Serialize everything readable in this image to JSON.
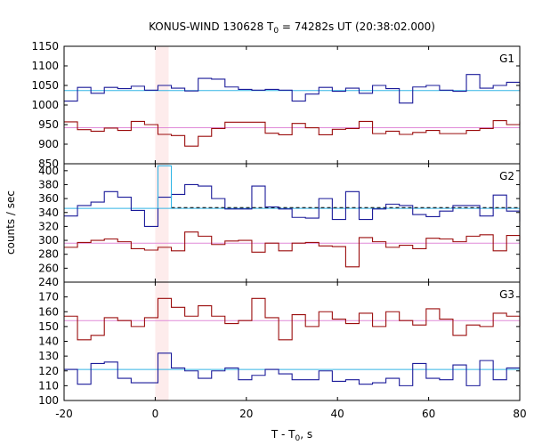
{
  "chart_data": {
    "type": "line",
    "title": "KONUS-WIND 130628 T",
    "title_sub": "0",
    "title_rest": " = 74282s UT (20:38:02.000)",
    "xlabel": "T - T",
    "xlabel_sub": "0",
    "xlabel_rest": ", s",
    "ylabel": "counts / sec",
    "xlim": [
      -20,
      80
    ],
    "x_ticks": [
      -20,
      0,
      20,
      40,
      60,
      80
    ],
    "highlight_band": [
      0,
      2.944
    ],
    "colors": {
      "blue": "#1a1a99",
      "red": "#9b0d0d",
      "cyan": "#33b5e5",
      "pink": "#e08ad8",
      "band": "#fdecec"
    },
    "panels": [
      {
        "label": "G1",
        "ylim": [
          850,
          1150
        ],
        "y_ticks": [
          850,
          900,
          950,
          1000,
          1050,
          1100,
          1150
        ],
        "series": [
          {
            "color": "blue",
            "bg_level": 1037,
            "bg_color": "cyan",
            "x": [
              -20,
              -17.06,
              -14.11,
              -11.17,
              -8.23,
              -5.28,
              -2.34,
              0.6,
              3.54,
              6.49,
              9.43,
              12.37,
              15.31,
              18.26,
              21.2,
              24.14,
              27.09,
              30.03,
              32.97,
              35.91,
              38.86,
              41.8,
              44.74,
              47.69,
              50.63,
              53.57,
              56.51,
              59.46,
              62.4,
              65.34,
              68.29,
              71.23,
              74.17,
              77.11,
              80
            ],
            "values": [
              1010,
              1045,
              1030,
              1045,
              1042,
              1048,
              1038,
              1050,
              1043,
              1036,
              1068,
              1066,
              1046,
              1040,
              1038,
              1040,
              1038,
              1010,
              1028,
              1045,
              1035,
              1043,
              1030,
              1050,
              1042,
              1005,
              1046,
              1050,
              1038,
              1035,
              1078,
              1043,
              1050,
              1058,
              1035
            ]
          },
          {
            "color": "red",
            "bg_level": 942,
            "bg_color": "pink",
            "x": [
              -20,
              -17.06,
              -14.11,
              -11.17,
              -8.23,
              -5.28,
              -2.34,
              0.6,
              3.54,
              6.49,
              9.43,
              12.37,
              15.31,
              18.26,
              21.2,
              24.14,
              27.09,
              30.03,
              32.97,
              35.91,
              38.86,
              41.8,
              44.74,
              47.69,
              50.63,
              53.57,
              56.51,
              59.46,
              62.4,
              65.34,
              68.29,
              71.23,
              74.17,
              77.11,
              80
            ],
            "values": [
              957,
              937,
              933,
              941,
              935,
              958,
              950,
              925,
              922,
              895,
              920,
              940,
              956,
              956,
              956,
              928,
              924,
              953,
              942,
              924,
              938,
              940,
              958,
              927,
              933,
              925,
              930,
              935,
              927,
              927,
              935,
              940,
              960,
              950,
              958
            ]
          }
        ]
      },
      {
        "label": "G2",
        "ylim": [
          240,
          410
        ],
        "y_ticks": [
          240,
          260,
          280,
          300,
          320,
          340,
          360,
          380,
          400
        ],
        "series": [
          {
            "color": "blue",
            "bg_level": 346,
            "bg_color": "cyan",
            "dashed_level": 347,
            "x": [
              -20,
              -17.06,
              -14.11,
              -11.17,
              -8.23,
              -5.28,
              -2.34,
              0.6,
              3.54,
              6.49,
              9.43,
              12.37,
              15.31,
              18.26,
              21.2,
              24.14,
              27.09,
              30.03,
              32.97,
              35.91,
              38.86,
              41.8,
              44.74,
              47.69,
              50.63,
              53.57,
              56.51,
              59.46,
              62.4,
              65.34,
              68.29,
              71.23,
              74.17,
              77.11,
              80
            ],
            "values": [
              335,
              350,
              355,
              370,
              362,
              343,
              320,
              362,
              366,
              380,
              378,
              360,
              345,
              345,
              378,
              348,
              345,
              333,
              332,
              360,
              330,
              370,
              330,
              345,
              352,
              350,
              337,
              334,
              342,
              350,
              350,
              335,
              365,
              342,
              327
            ]
          },
          {
            "color": "red",
            "bg_level": 296,
            "bg_color": "pink",
            "x": [
              -20,
              -17.06,
              -14.11,
              -11.17,
              -8.23,
              -5.28,
              -2.34,
              0.6,
              3.54,
              6.49,
              9.43,
              12.37,
              15.31,
              18.26,
              21.2,
              24.14,
              27.09,
              30.03,
              32.97,
              35.91,
              38.86,
              41.8,
              44.74,
              47.69,
              50.63,
              53.57,
              56.51,
              59.46,
              62.4,
              65.34,
              68.29,
              71.23,
              74.17,
              77.11,
              80
            ],
            "values": [
              290,
              297,
              300,
              302,
              298,
              288,
              286,
              290,
              285,
              312,
              306,
              294,
              299,
              300,
              283,
              296,
              285,
              296,
              297,
              292,
              291,
              262,
              304,
              298,
              290,
              293,
              288,
              303,
              302,
              298,
              306,
              308,
              285,
              307,
              300
            ]
          },
          {
            "color": "cyan",
            "x": [
              0.6,
              3.54
            ],
            "values": [
              407,
              407
            ],
            "spike_only": true
          }
        ]
      },
      {
        "label": "G3",
        "ylim": [
          100,
          180
        ],
        "y_ticks": [
          100,
          110,
          120,
          130,
          140,
          150,
          160,
          170
        ],
        "series": [
          {
            "color": "red",
            "bg_level": 154,
            "bg_color": "pink",
            "x": [
              -20,
              -17.06,
              -14.11,
              -11.17,
              -8.23,
              -5.28,
              -2.34,
              0.6,
              3.54,
              6.49,
              9.43,
              12.37,
              15.31,
              18.26,
              21.2,
              24.14,
              27.09,
              30.03,
              32.97,
              35.91,
              38.86,
              41.8,
              44.74,
              47.69,
              50.63,
              53.57,
              56.51,
              59.46,
              62.4,
              65.34,
              68.29,
              71.23,
              74.17,
              77.11,
              80
            ],
            "values": [
              157,
              141,
              144,
              156,
              154,
              150,
              156,
              169,
              163,
              157,
              164,
              157,
              152,
              154,
              169,
              156,
              141,
              158,
              150,
              160,
              155,
              152,
              159,
              150,
              160,
              154,
              151,
              162,
              155,
              144,
              151,
              150,
              159,
              157,
              150
            ]
          },
          {
            "color": "blue",
            "bg_level": 121,
            "bg_color": "cyan",
            "x": [
              -20,
              -17.06,
              -14.11,
              -11.17,
              -8.23,
              -5.28,
              -2.34,
              0.6,
              3.54,
              6.49,
              9.43,
              12.37,
              15.31,
              18.26,
              21.2,
              24.14,
              27.09,
              30.03,
              32.97,
              35.91,
              38.86,
              41.8,
              44.74,
              47.69,
              50.63,
              53.57,
              56.51,
              59.46,
              62.4,
              65.34,
              68.29,
              71.23,
              74.17,
              77.11,
              80
            ],
            "values": [
              121,
              111,
              125,
              126,
              115,
              112,
              112,
              132,
              122,
              120,
              115,
              120,
              122,
              114,
              117,
              121,
              118,
              114,
              114,
              120,
              113,
              114,
              111,
              112,
              115,
              110,
              125,
              115,
              114,
              124,
              110,
              127,
              114,
              122,
              122
            ]
          }
        ]
      }
    ]
  }
}
